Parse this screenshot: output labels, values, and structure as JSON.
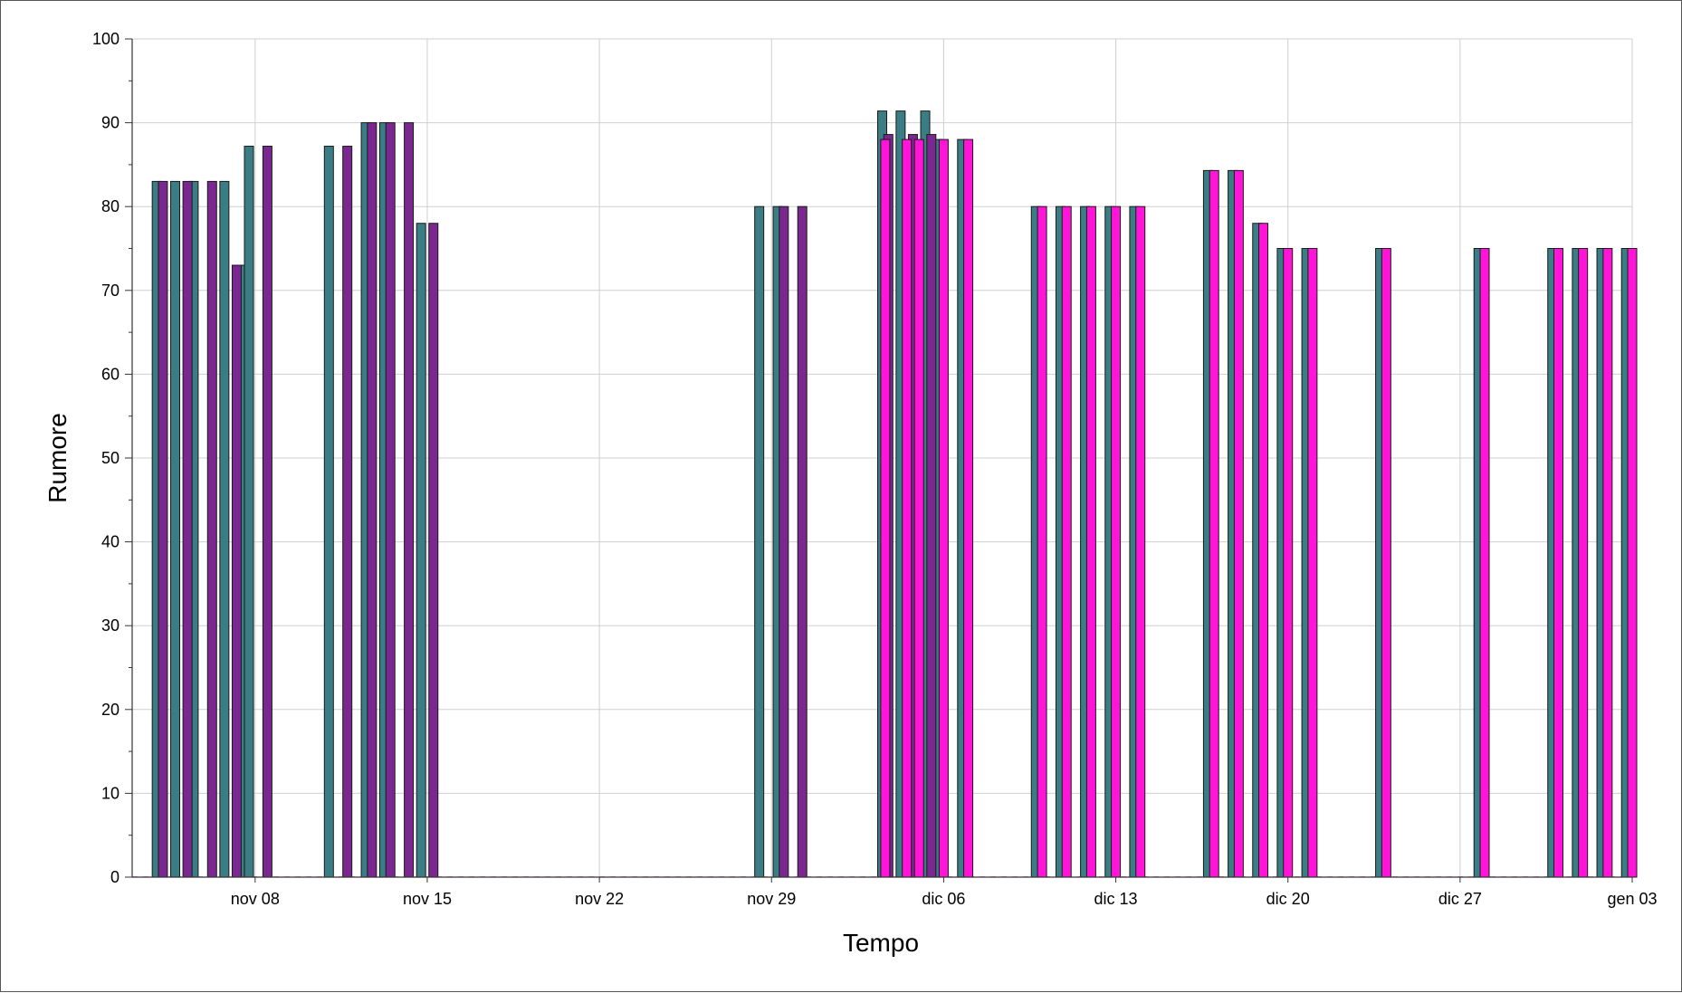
{
  "chart_data": {
    "type": "bar",
    "title": "",
    "xlabel": "Tempo",
    "ylabel": "Rumore",
    "ylim": [
      0,
      100
    ],
    "yticks": [
      0,
      10,
      20,
      30,
      40,
      50,
      60,
      70,
      80,
      90,
      100
    ],
    "xlim": [
      "2021-11-03",
      "2022-01-03"
    ],
    "xticks": [
      {
        "date": "2021-11-08",
        "label": "nov 08"
      },
      {
        "date": "2021-11-15",
        "label": "nov 15"
      },
      {
        "date": "2021-11-22",
        "label": "nov 22"
      },
      {
        "date": "2021-11-29",
        "label": "nov 29"
      },
      {
        "date": "2021-12-06",
        "label": "dic 06"
      },
      {
        "date": "2021-12-13",
        "label": "dic 13"
      },
      {
        "date": "2021-12-20",
        "label": "dic 20"
      },
      {
        "date": "2021-12-27",
        "label": "dic 27"
      },
      {
        "date": "2022-01-03",
        "label": "gen 03"
      }
    ],
    "grid": true,
    "colors": {
      "series_1": "#3a7d85",
      "series_2": "#7b2790",
      "series_3": "#ff14d8"
    },
    "series": [
      {
        "key": "s1",
        "color_key": "series_1",
        "points": [
          {
            "x": "2021-11-04 00:00",
            "y": 83
          },
          {
            "x": "2021-11-04 18:00",
            "y": 83
          },
          {
            "x": "2021-11-05 12:00",
            "y": 83
          },
          {
            "x": "2021-11-06 18:00",
            "y": 83
          },
          {
            "x": "2021-11-07 12:00",
            "y": 73
          },
          {
            "x": "2021-11-07 18:00",
            "y": 87.2
          },
          {
            "x": "2021-11-11 00:00",
            "y": 87.2
          },
          {
            "x": "2021-11-12 12:00",
            "y": 90
          },
          {
            "x": "2021-11-13 06:00",
            "y": 90
          },
          {
            "x": "2021-11-14 18:00",
            "y": 78
          },
          {
            "x": "2021-11-28 12:00",
            "y": 80
          },
          {
            "x": "2021-11-29 06:00",
            "y": 80
          },
          {
            "x": "2021-12-03 12:00",
            "y": 91.4
          },
          {
            "x": "2021-12-04 06:00",
            "y": 91.4
          },
          {
            "x": "2021-12-05 06:00",
            "y": 91.4
          },
          {
            "x": "2021-12-05 18:00",
            "y": 88
          },
          {
            "x": "2021-12-06 18:00",
            "y": 88
          },
          {
            "x": "2021-12-09 18:00",
            "y": 80
          },
          {
            "x": "2021-12-10 18:00",
            "y": 80
          },
          {
            "x": "2021-12-11 18:00",
            "y": 80
          },
          {
            "x": "2021-12-12 18:00",
            "y": 80
          },
          {
            "x": "2021-12-13 18:00",
            "y": 80
          },
          {
            "x": "2021-12-16 18:00",
            "y": 84.3
          },
          {
            "x": "2021-12-17 18:00",
            "y": 84.3
          },
          {
            "x": "2021-12-18 18:00",
            "y": 78
          },
          {
            "x": "2021-12-19 18:00",
            "y": 75
          },
          {
            "x": "2021-12-20 18:00",
            "y": 75
          },
          {
            "x": "2021-12-23 18:00",
            "y": 75
          },
          {
            "x": "2021-12-27 18:00",
            "y": 75
          },
          {
            "x": "2021-12-30 18:00",
            "y": 75
          },
          {
            "x": "2021-12-31 18:00",
            "y": 75
          },
          {
            "x": "2022-01-01 18:00",
            "y": 75
          },
          {
            "x": "2022-01-02 18:00",
            "y": 75
          }
        ]
      },
      {
        "key": "s2",
        "color_key": "series_2",
        "points": [
          {
            "x": "2021-11-04 06:00",
            "y": 83
          },
          {
            "x": "2021-11-05 06:00",
            "y": 83
          },
          {
            "x": "2021-11-06 06:00",
            "y": 83
          },
          {
            "x": "2021-11-07 06:00",
            "y": 73
          },
          {
            "x": "2021-11-08 12:00",
            "y": 87.2
          },
          {
            "x": "2021-11-11 18:00",
            "y": 87.2
          },
          {
            "x": "2021-11-12 18:00",
            "y": 90
          },
          {
            "x": "2021-11-13 12:00",
            "y": 90
          },
          {
            "x": "2021-11-14 06:00",
            "y": 90
          },
          {
            "x": "2021-11-15 06:00",
            "y": 78
          },
          {
            "x": "2021-11-29 12:00",
            "y": 80
          },
          {
            "x": "2021-11-30 06:00",
            "y": 80
          },
          {
            "x": "2021-12-03 18:00",
            "y": 88.6
          },
          {
            "x": "2021-12-04 18:00",
            "y": 88.6
          },
          {
            "x": "2021-12-05 12:00",
            "y": 88.6
          }
        ]
      },
      {
        "key": "s3",
        "color_key": "series_3",
        "points": [
          {
            "x": "2021-12-03 15:00",
            "y": 88
          },
          {
            "x": "2021-12-04 12:00",
            "y": 88
          },
          {
            "x": "2021-12-05 00:00",
            "y": 88
          },
          {
            "x": "2021-12-06 00:00",
            "y": 88
          },
          {
            "x": "2021-12-07 00:00",
            "y": 88
          },
          {
            "x": "2021-12-10 00:00",
            "y": 80
          },
          {
            "x": "2021-12-11 00:00",
            "y": 80
          },
          {
            "x": "2021-12-12 00:00",
            "y": 80
          },
          {
            "x": "2021-12-13 00:00",
            "y": 80
          },
          {
            "x": "2021-12-14 00:00",
            "y": 80
          },
          {
            "x": "2021-12-17 00:00",
            "y": 84.3
          },
          {
            "x": "2021-12-18 00:00",
            "y": 84.3
          },
          {
            "x": "2021-12-19 00:00",
            "y": 78
          },
          {
            "x": "2021-12-20 00:00",
            "y": 75
          },
          {
            "x": "2021-12-21 00:00",
            "y": 75
          },
          {
            "x": "2021-12-24 00:00",
            "y": 75
          },
          {
            "x": "2021-12-28 00:00",
            "y": 75
          },
          {
            "x": "2021-12-31 00:00",
            "y": 75
          },
          {
            "x": "2022-01-01 00:00",
            "y": 75
          },
          {
            "x": "2022-01-02 00:00",
            "y": 75
          },
          {
            "x": "2022-01-03 00:00",
            "y": 75
          }
        ]
      }
    ]
  }
}
